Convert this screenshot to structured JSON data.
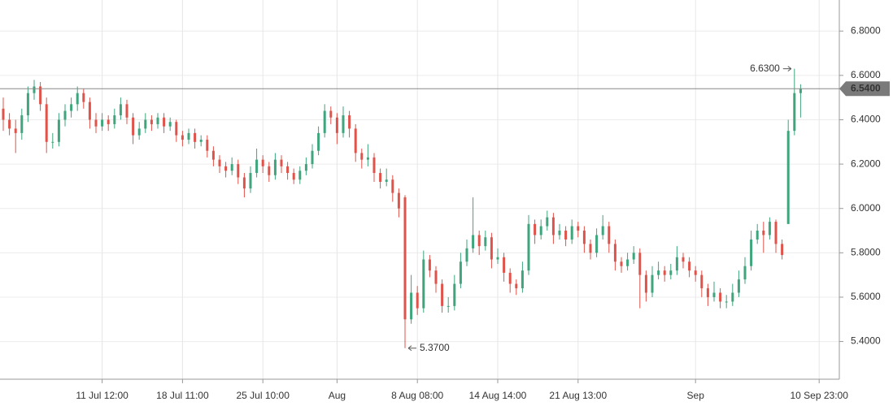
{
  "chart_data": {
    "type": "candlestick",
    "categories": [
      null,
      null,
      null,
      null,
      null,
      null,
      null,
      null,
      null,
      null,
      null,
      null,
      null,
      null,
      null,
      null,
      "11 Jul 12:00",
      null,
      null,
      null,
      null,
      null,
      null,
      null,
      null,
      null,
      null,
      null,
      null,
      "18 Jul 11:00",
      null,
      null,
      null,
      null,
      null,
      null,
      null,
      null,
      null,
      null,
      null,
      null,
      "25 Jul 10:00",
      null,
      null,
      null,
      null,
      null,
      null,
      null,
      null,
      null,
      null,
      null,
      "Aug",
      null,
      null,
      null,
      null,
      null,
      null,
      null,
      null,
      null,
      null,
      null,
      null,
      "8 Aug 08:00",
      null,
      null,
      null,
      null,
      null,
      null,
      null,
      null,
      null,
      null,
      null,
      null,
      "14 Aug 14:00",
      null,
      null,
      null,
      null,
      null,
      null,
      null,
      null,
      null,
      null,
      null,
      null,
      "21 Aug 13:00",
      null,
      null,
      null,
      null,
      null,
      null,
      null,
      null,
      null,
      null,
      null,
      null,
      null,
      null,
      null,
      null,
      null,
      null,
      "Sep",
      null,
      null,
      null,
      null,
      null,
      null,
      null,
      null,
      null,
      null,
      null,
      null,
      null,
      null,
      null,
      null,
      null,
      null,
      null,
      "10 Sep 23:00"
    ],
    "ohlc": [
      [
        6.45,
        6.5,
        6.35,
        6.4
      ],
      [
        6.4,
        6.43,
        6.33,
        6.36
      ],
      [
        6.36,
        6.4,
        6.25,
        6.34
      ],
      [
        6.34,
        6.45,
        6.31,
        6.42
      ],
      [
        6.42,
        6.55,
        6.39,
        6.52
      ],
      [
        6.52,
        6.58,
        6.49,
        6.55
      ],
      [
        6.55,
        6.57,
        6.44,
        6.47
      ],
      [
        6.47,
        6.5,
        6.25,
        6.3
      ],
      [
        6.3,
        6.34,
        6.27,
        6.3
      ],
      [
        6.3,
        6.43,
        6.28,
        6.4
      ],
      [
        6.4,
        6.47,
        6.37,
        6.44
      ],
      [
        6.44,
        6.5,
        6.41,
        6.47
      ],
      [
        6.47,
        6.55,
        6.44,
        6.52
      ],
      [
        6.52,
        6.54,
        6.45,
        6.48
      ],
      [
        6.48,
        6.5,
        6.36,
        6.4
      ],
      [
        6.4,
        6.43,
        6.34,
        6.37
      ],
      [
        6.37,
        6.43,
        6.35,
        6.4
      ],
      [
        6.4,
        6.42,
        6.35,
        6.38
      ],
      [
        6.38,
        6.45,
        6.36,
        6.42
      ],
      [
        6.42,
        6.5,
        6.4,
        6.47
      ],
      [
        6.47,
        6.49,
        6.38,
        6.41
      ],
      [
        6.41,
        6.43,
        6.29,
        6.33
      ],
      [
        6.33,
        6.39,
        6.31,
        6.36
      ],
      [
        6.36,
        6.43,
        6.34,
        6.4
      ],
      [
        6.4,
        6.42,
        6.35,
        6.38
      ],
      [
        6.38,
        6.43,
        6.36,
        6.41
      ],
      [
        6.41,
        6.43,
        6.34,
        6.37
      ],
      [
        6.37,
        6.41,
        6.35,
        6.39
      ],
      [
        6.39,
        6.4,
        6.3,
        6.33
      ],
      [
        6.33,
        6.35,
        6.28,
        6.31
      ],
      [
        6.31,
        6.36,
        6.29,
        6.34
      ],
      [
        6.34,
        6.36,
        6.27,
        6.3
      ],
      [
        6.3,
        6.33,
        6.28,
        6.31
      ],
      [
        6.31,
        6.33,
        6.23,
        6.26
      ],
      [
        6.26,
        6.28,
        6.19,
        6.22
      ],
      [
        6.22,
        6.24,
        6.16,
        6.19
      ],
      [
        6.19,
        6.21,
        6.14,
        6.17
      ],
      [
        6.17,
        6.23,
        6.15,
        6.2
      ],
      [
        6.2,
        6.22,
        6.11,
        6.14
      ],
      [
        6.14,
        6.16,
        6.05,
        6.09
      ],
      [
        6.09,
        6.19,
        6.07,
        6.16
      ],
      [
        6.16,
        6.27,
        6.14,
        6.22
      ],
      [
        6.22,
        6.24,
        6.16,
        6.19
      ],
      [
        6.19,
        6.21,
        6.12,
        6.15
      ],
      [
        6.15,
        6.25,
        6.13,
        6.22
      ],
      [
        6.22,
        6.24,
        6.16,
        6.19
      ],
      [
        6.19,
        6.21,
        6.13,
        6.16
      ],
      [
        6.16,
        6.18,
        6.11,
        6.13
      ],
      [
        6.13,
        6.19,
        6.11,
        6.17
      ],
      [
        6.17,
        6.23,
        6.15,
        6.2
      ],
      [
        6.2,
        6.29,
        6.18,
        6.26
      ],
      [
        6.26,
        6.37,
        6.24,
        6.34
      ],
      [
        6.34,
        6.47,
        6.32,
        6.44
      ],
      [
        6.44,
        6.46,
        6.38,
        6.41
      ],
      [
        6.41,
        6.43,
        6.29,
        6.34
      ],
      [
        6.34,
        6.46,
        6.32,
        6.42
      ],
      [
        6.42,
        6.44,
        6.32,
        6.36
      ],
      [
        6.36,
        6.38,
        6.21,
        6.25
      ],
      [
        6.25,
        6.27,
        6.18,
        6.22
      ],
      [
        6.22,
        6.29,
        6.19,
        6.23
      ],
      [
        6.23,
        6.25,
        6.12,
        6.16
      ],
      [
        6.16,
        6.18,
        6.09,
        6.12
      ],
      [
        6.12,
        6.18,
        6.1,
        6.13
      ],
      [
        6.13,
        6.15,
        6.03,
        6.07
      ],
      [
        6.07,
        6.09,
        5.96,
        6.0
      ],
      [
        6.05,
        6.06,
        5.37,
        5.5
      ],
      [
        5.5,
        5.7,
        5.48,
        5.62
      ],
      [
        5.62,
        5.65,
        5.52,
        5.55
      ],
      [
        5.55,
        5.81,
        5.53,
        5.77
      ],
      [
        5.77,
        5.79,
        5.69,
        5.72
      ],
      [
        5.72,
        5.74,
        5.62,
        5.66
      ],
      [
        5.66,
        5.68,
        5.53,
        5.56
      ],
      [
        5.56,
        5.6,
        5.53,
        5.56
      ],
      [
        5.56,
        5.7,
        5.54,
        5.66
      ],
      [
        5.66,
        5.8,
        5.64,
        5.76
      ],
      [
        5.76,
        5.86,
        5.74,
        5.82
      ],
      [
        5.82,
        6.05,
        5.8,
        5.88
      ],
      [
        5.88,
        5.9,
        5.79,
        5.83
      ],
      [
        5.83,
        5.9,
        5.81,
        5.87
      ],
      [
        5.87,
        5.89,
        5.73,
        5.77
      ],
      [
        5.77,
        5.82,
        5.75,
        5.78
      ],
      [
        5.78,
        5.8,
        5.67,
        5.71
      ],
      [
        5.71,
        5.73,
        5.62,
        5.66
      ],
      [
        5.66,
        5.68,
        5.61,
        5.64
      ],
      [
        5.64,
        5.76,
        5.62,
        5.72
      ],
      [
        5.72,
        5.97,
        5.7,
        5.93
      ],
      [
        5.93,
        5.95,
        5.84,
        5.88
      ],
      [
        5.88,
        5.95,
        5.86,
        5.92
      ],
      [
        5.92,
        5.99,
        5.9,
        5.96
      ],
      [
        5.96,
        5.98,
        5.84,
        5.88
      ],
      [
        5.88,
        5.93,
        5.86,
        5.9
      ],
      [
        5.9,
        5.92,
        5.83,
        5.86
      ],
      [
        5.86,
        5.95,
        5.84,
        5.92
      ],
      [
        5.92,
        5.94,
        5.87,
        5.9
      ],
      [
        5.9,
        5.92,
        5.8,
        5.84
      ],
      [
        5.84,
        5.86,
        5.77,
        5.8
      ],
      [
        5.8,
        5.91,
        5.78,
        5.88
      ],
      [
        5.88,
        5.97,
        5.86,
        5.92
      ],
      [
        5.92,
        5.94,
        5.8,
        5.84
      ],
      [
        5.84,
        5.86,
        5.72,
        5.76
      ],
      [
        5.76,
        5.78,
        5.71,
        5.74
      ],
      [
        5.74,
        5.8,
        5.72,
        5.77
      ],
      [
        5.77,
        5.83,
        5.75,
        5.8
      ],
      [
        5.8,
        5.82,
        5.55,
        5.7
      ],
      [
        5.7,
        5.72,
        5.58,
        5.62
      ],
      [
        5.62,
        5.74,
        5.6,
        5.7
      ],
      [
        5.7,
        5.76,
        5.68,
        5.72
      ],
      [
        5.72,
        5.74,
        5.67,
        5.7
      ],
      [
        5.7,
        5.75,
        5.68,
        5.72
      ],
      [
        5.72,
        5.83,
        5.7,
        5.78
      ],
      [
        5.78,
        5.8,
        5.73,
        5.76
      ],
      [
        5.76,
        5.78,
        5.69,
        5.72
      ],
      [
        5.72,
        5.74,
        5.67,
        5.7
      ],
      [
        5.7,
        5.72,
        5.6,
        5.64
      ],
      [
        5.64,
        5.66,
        5.56,
        5.6
      ],
      [
        5.6,
        5.67,
        5.58,
        5.62
      ],
      [
        5.62,
        5.64,
        5.55,
        5.58
      ],
      [
        5.58,
        5.61,
        5.55,
        5.58
      ],
      [
        5.58,
        5.66,
        5.56,
        5.62
      ],
      [
        5.62,
        5.72,
        5.6,
        5.68
      ],
      [
        5.68,
        5.78,
        5.66,
        5.74
      ],
      [
        5.74,
        5.9,
        5.72,
        5.86
      ],
      [
        5.86,
        5.93,
        5.84,
        5.9
      ],
      [
        5.9,
        5.94,
        5.8,
        5.88
      ],
      [
        5.88,
        5.96,
        5.86,
        5.94
      ],
      [
        5.94,
        5.95,
        5.8,
        5.84
      ],
      [
        5.84,
        5.86,
        5.77,
        5.79
      ],
      [
        5.93,
        6.4,
        5.93,
        6.35
      ],
      [
        6.35,
        6.63,
        6.33,
        6.52
      ],
      [
        6.52,
        6.56,
        6.41,
        6.54
      ],
      null,
      null,
      null
    ],
    "up_color": "#3ea57c",
    "down_color": "#e0534a",
    "ylim": [
      5.23,
      6.94
    ],
    "yticks": [
      {
        "value": 5.4,
        "label": "5.4000"
      },
      {
        "value": 5.6,
        "label": "5.6000"
      },
      {
        "value": 5.8,
        "label": "5.8000"
      },
      {
        "value": 6.0,
        "label": "6.0000"
      },
      {
        "value": 6.2,
        "label": "6.2000"
      },
      {
        "value": 6.4,
        "label": "6.4000"
      },
      {
        "value": 6.6,
        "label": "6.6000"
      },
      {
        "value": 6.8,
        "label": "6.8000"
      }
    ],
    "grid": true,
    "last_price": {
      "value": 6.54,
      "label": "6.5400"
    },
    "annotations": [
      {
        "value": 6.63,
        "label": "6.6300"
      },
      {
        "value": 5.37,
        "label": "5.3700"
      }
    ]
  }
}
